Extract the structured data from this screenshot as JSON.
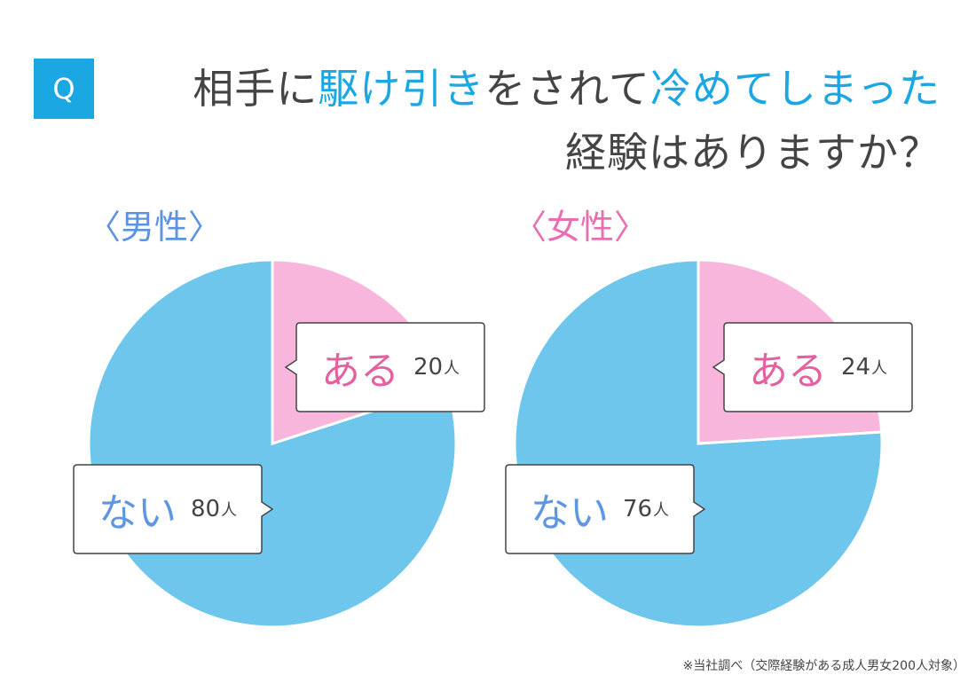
{
  "colors": {
    "accent_blue": "#1aa7e2",
    "pie_blue": "#6ec6ec",
    "pie_pink": "#f8b6dc",
    "male_title": "#5b93e0",
    "female_title": "#e86fb2",
    "yes_text": "#e5609f",
    "no_text": "#5d96e1",
    "text_dark": "#444444"
  },
  "header": {
    "badge": "Q",
    "line1": [
      {
        "text": "相手に",
        "accent": false
      },
      {
        "text": "駆け引き",
        "accent": true
      },
      {
        "text": "をされて",
        "accent": false
      },
      {
        "text": "冷めてしまった",
        "accent": true
      }
    ],
    "line2": "経験はありますか？"
  },
  "chart_data": [
    {
      "type": "pie",
      "title": "〈男性〉",
      "labels": [
        "ある",
        "ない"
      ],
      "values": [
        20,
        80
      ],
      "unit": "人",
      "colors": [
        "#f8b6dc",
        "#6ec6ec"
      ]
    },
    {
      "type": "pie",
      "title": "〈女性〉",
      "labels": [
        "ある",
        "ない"
      ],
      "values": [
        24,
        76
      ],
      "unit": "人",
      "colors": [
        "#f8b6dc",
        "#6ec6ec"
      ]
    }
  ],
  "footnote": "※当社調べ（交際経験がある成人男女200人対象）"
}
